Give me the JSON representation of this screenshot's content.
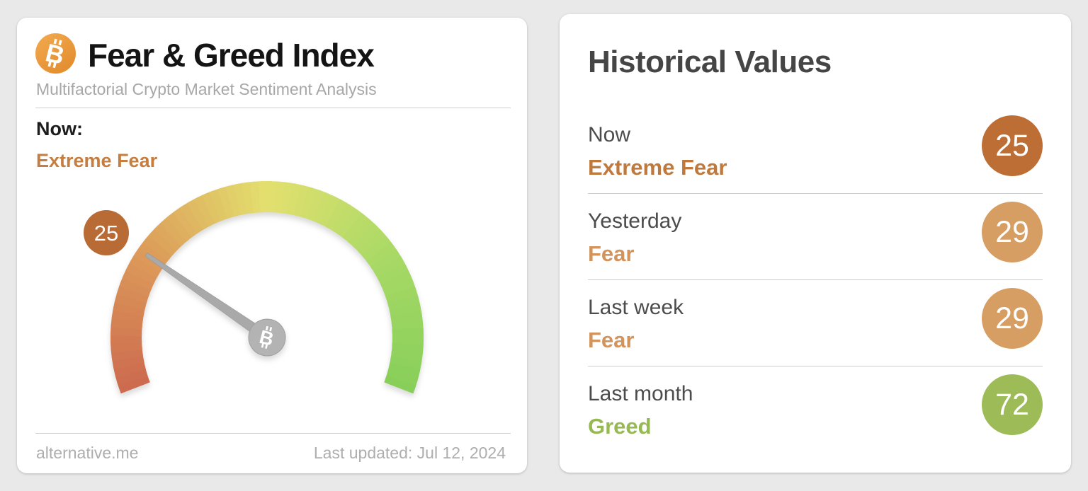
{
  "page": {
    "background_color": "#e9e9e9"
  },
  "fear_greed_card": {
    "title": "Fear & Greed Index",
    "subtitle": "Multifactorial Crypto Market Sentiment Analysis",
    "logo_letter": "B",
    "now_label": "Now:",
    "now_classification": "Extreme Fear",
    "now_classification_color": "#c57d40",
    "footer_source": "alternative.me",
    "footer_updated": "Last updated: Jul 12, 2024"
  },
  "gauge": {
    "value": 25,
    "min": 0,
    "max": 100,
    "badge_label": "25",
    "badge_color": "#b96b36",
    "start_angle_deg": 201,
    "end_angle_deg": -21,
    "arc_thickness": 44,
    "gradient_stops": [
      {
        "value": 0,
        "color": "#cd6a4f"
      },
      {
        "value": 25,
        "color": "#dc9a59"
      },
      {
        "value": 50,
        "color": "#e3e06e"
      },
      {
        "value": 75,
        "color": "#a9d966"
      },
      {
        "value": 100,
        "color": "#87cf5a"
      }
    ],
    "needle_color": "#a9a9a9",
    "pivot_color": "#b3b3b3",
    "pivot_symbol": "B"
  },
  "historical_card": {
    "title": "Historical Values",
    "rows": [
      {
        "label": "Now",
        "classification": "Extreme Fear",
        "value": "25",
        "classification_color": "#c0793c",
        "badge_color": "#bd6e35"
      },
      {
        "label": "Yesterday",
        "classification": "Fear",
        "value": "29",
        "classification_color": "#d2935c",
        "badge_color": "#d79e63"
      },
      {
        "label": "Last week",
        "classification": "Fear",
        "value": "29",
        "classification_color": "#d2935c",
        "badge_color": "#d79e63"
      },
      {
        "label": "Last month",
        "classification": "Greed",
        "value": "72",
        "classification_color": "#97b951",
        "badge_color": "#9dbb57"
      }
    ]
  },
  "chart_data": {
    "type": "gauge",
    "title": "Fear & Greed Index",
    "subtitle": "Multifactorial Crypto Market Sentiment Analysis",
    "value": 25,
    "range": [
      0,
      100
    ],
    "classification": "Extreme Fear",
    "last_updated": "Jul 12, 2024",
    "source": "alternative.me",
    "color_scale": [
      {
        "value": 0,
        "color": "#cd6a4f"
      },
      {
        "value": 25,
        "color": "#dc9a59"
      },
      {
        "value": 50,
        "color": "#e3e06e"
      },
      {
        "value": 75,
        "color": "#a9d966"
      },
      {
        "value": 100,
        "color": "#87cf5a"
      }
    ],
    "historical_values": [
      {
        "label": "Now",
        "value": 25,
        "classification": "Extreme Fear"
      },
      {
        "label": "Yesterday",
        "value": 29,
        "classification": "Fear"
      },
      {
        "label": "Last week",
        "value": 29,
        "classification": "Fear"
      },
      {
        "label": "Last month",
        "value": 72,
        "classification": "Greed"
      }
    ]
  }
}
